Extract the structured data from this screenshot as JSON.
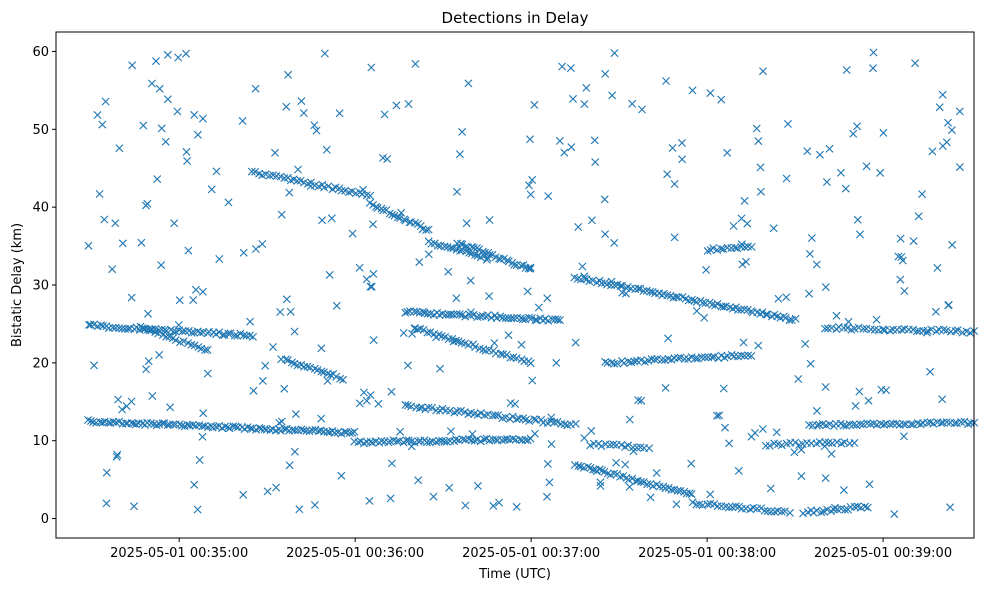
{
  "chart_data": {
    "type": "scatter",
    "title": "Detections in Delay",
    "xlabel": "Time (UTC)",
    "ylabel": "Bistatic Delay (km)",
    "marker": "x",
    "color": "#1f77b4",
    "grid": false,
    "legend": null,
    "xlim": [
      "2025-05-01 00:34:18",
      "2025-05-01 00:39:31"
    ],
    "ylim": [
      -2.5,
      62.5
    ],
    "xticks": [
      {
        "t": "2025-05-01 00:35:00",
        "label": "2025-05-01 00:35:00"
      },
      {
        "t": "2025-05-01 00:36:00",
        "label": "2025-05-01 00:36:00"
      },
      {
        "t": "2025-05-01 00:37:00",
        "label": "2025-05-01 00:37:00"
      },
      {
        "t": "2025-05-01 00:38:00",
        "label": "2025-05-01 00:38:00"
      },
      {
        "t": "2025-05-01 00:39:00",
        "label": "2025-05-01 00:39:00"
      }
    ],
    "yticks": [
      0,
      10,
      20,
      30,
      40,
      50,
      60
    ],
    "tracks": [
      {
        "t_start": "2025-05-01 00:34:29",
        "t_end": "2025-05-01 00:36:00",
        "y_start": 12.5,
        "y_end": 11.0,
        "points": 95
      },
      {
        "t_start": "2025-05-01 00:34:29",
        "t_end": "2025-05-01 00:35:25",
        "y_start": 24.8,
        "y_end": 23.5,
        "points": 55
      },
      {
        "t_start": "2025-05-01 00:34:47",
        "t_end": "2025-05-01 00:35:10",
        "y_start": 24.5,
        "y_end": 21.5,
        "points": 20
      },
      {
        "t_start": "2025-05-01 00:35:35",
        "t_end": "2025-05-01 00:35:56",
        "y_start": 20.5,
        "y_end": 18.0,
        "points": 20
      },
      {
        "t_start": "2025-05-01 00:35:25",
        "t_end": "2025-05-01 00:36:05",
        "y_start": 44.5,
        "y_end": 41.5,
        "points": 35
      },
      {
        "t_start": "2025-05-01 00:36:05",
        "t_end": "2025-05-01 00:36:25",
        "y_start": 40.5,
        "y_end": 37.0,
        "points": 22
      },
      {
        "t_start": "2025-05-01 00:36:25",
        "t_end": "2025-05-01 00:36:45",
        "y_start": 35.5,
        "y_end": 33.5,
        "points": 20
      },
      {
        "t_start": "2025-05-01 00:36:35",
        "t_end": "2025-05-01 00:37:00",
        "y_start": 35.5,
        "y_end": 32.0,
        "points": 28
      },
      {
        "t_start": "2025-05-01 00:37:15",
        "t_end": "2025-05-01 00:38:30",
        "y_start": 31.0,
        "y_end": 25.5,
        "points": 75
      },
      {
        "t_start": "2025-05-01 00:36:17",
        "t_end": "2025-05-01 00:37:15",
        "y_start": 14.5,
        "y_end": 12.0,
        "points": 50
      },
      {
        "t_start": "2025-05-01 00:36:00",
        "t_end": "2025-05-01 00:37:00",
        "y_start": 9.8,
        "y_end": 10.2,
        "points": 60
      },
      {
        "t_start": "2025-05-01 00:37:15",
        "t_end": "2025-05-01 00:37:55",
        "y_start": 7.0,
        "y_end": 3.0,
        "points": 40
      },
      {
        "t_start": "2025-05-01 00:37:55",
        "t_end": "2025-05-01 00:38:28",
        "y_start": 2.0,
        "y_end": 0.8,
        "points": 28
      },
      {
        "t_start": "2025-05-01 00:38:33",
        "t_end": "2025-05-01 00:38:55",
        "y_start": 0.8,
        "y_end": 1.5,
        "points": 20
      },
      {
        "t_start": "2025-05-01 00:36:17",
        "t_end": "2025-05-01 00:37:10",
        "y_start": 26.5,
        "y_end": 25.5,
        "points": 55
      },
      {
        "t_start": "2025-05-01 00:36:20",
        "t_end": "2025-05-01 00:37:00",
        "y_start": 24.5,
        "y_end": 20.0,
        "points": 35
      },
      {
        "t_start": "2025-05-01 00:37:25",
        "t_end": "2025-05-01 00:38:15",
        "y_start": 20.0,
        "y_end": 21.0,
        "points": 45
      },
      {
        "t_start": "2025-05-01 00:38:00",
        "t_end": "2025-05-01 00:38:15",
        "y_start": 34.5,
        "y_end": 35.0,
        "points": 14
      },
      {
        "t_start": "2025-05-01 00:38:35",
        "t_end": "2025-05-01 00:39:31",
        "y_start": 12.0,
        "y_end": 12.3,
        "points": 50
      },
      {
        "t_start": "2025-05-01 00:38:40",
        "t_end": "2025-05-01 00:39:31",
        "y_start": 24.5,
        "y_end": 24.0,
        "points": 40
      },
      {
        "t_start": "2025-05-01 00:37:20",
        "t_end": "2025-05-01 00:37:40",
        "y_start": 9.5,
        "y_end": 9.2,
        "points": 16
      },
      {
        "t_start": "2025-05-01 00:38:20",
        "t_end": "2025-05-01 00:38:50",
        "y_start": 9.5,
        "y_end": 9.8,
        "points": 22
      }
    ],
    "background_clutter": {
      "count": 360,
      "t_range": [
        "2025-05-01 00:34:29",
        "2025-05-01 00:39:27"
      ],
      "y_range": [
        0.5,
        60
      ]
    }
  }
}
